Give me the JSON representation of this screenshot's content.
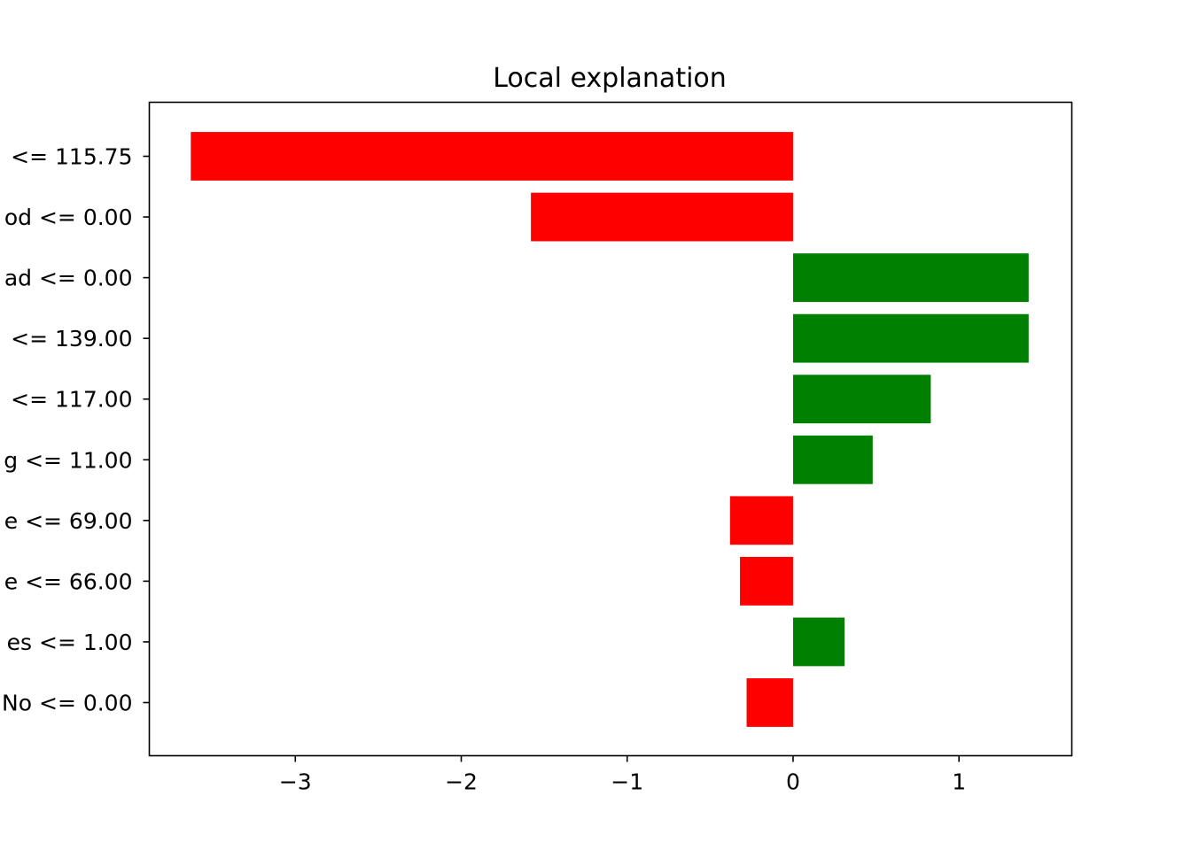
{
  "chart_data": {
    "type": "bar",
    "orientation": "horizontal",
    "title": "Local explanation",
    "xlabel": "",
    "ylabel": "",
    "xlim": [
      -3.88,
      1.68
    ],
    "xticks": [
      -3,
      -2,
      -1,
      0,
      1
    ],
    "xtick_labels": [
      "−3",
      "−2",
      "−1",
      "0",
      "1"
    ],
    "grid": false,
    "legend": "none",
    "colors": {
      "positive": "#008000",
      "negative": "#ff0000",
      "axes": "#000000",
      "background": "#ffffff"
    },
    "categories": [
      "<= 115.75",
      "od <= 0.00",
      "ad <= 0.00",
      "<= 139.00",
      "<= 117.00",
      "g <= 11.00",
      "e <= 69.00",
      "e <= 66.00",
      "es <= 1.00",
      "No <= 0.00"
    ],
    "values": [
      -3.63,
      -1.58,
      1.42,
      1.42,
      0.83,
      0.48,
      -0.38,
      -0.32,
      0.31,
      -0.28
    ]
  }
}
